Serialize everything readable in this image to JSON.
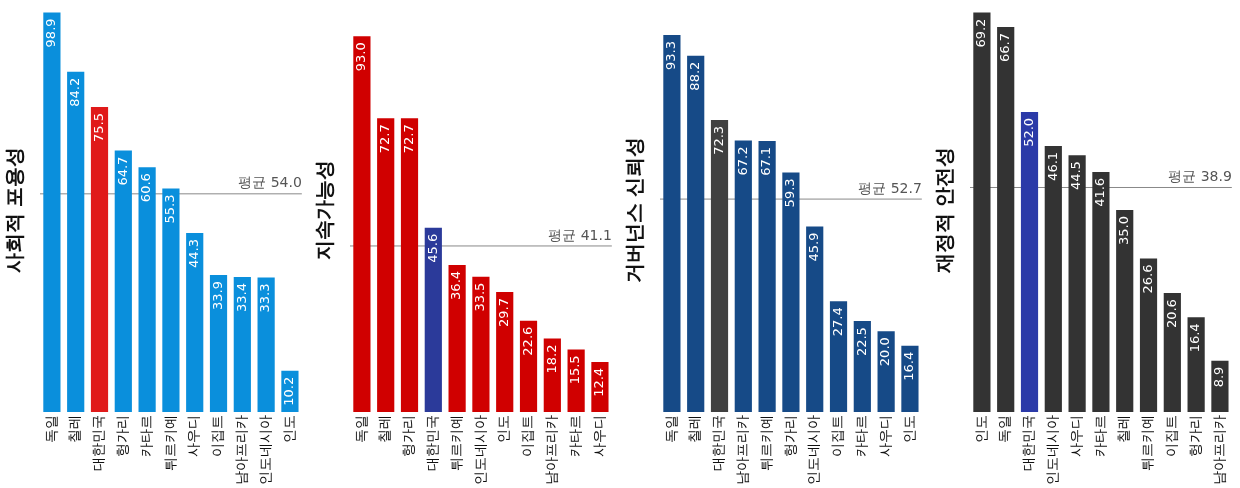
{
  "chart_data": [
    {
      "type": "bar",
      "ylabel": "사회적 포용성",
      "categories": [
        "독일",
        "칠레",
        "대한민국",
        "헝가리",
        "카타르",
        "튀르키예",
        "사우디",
        "이집트",
        "남아프리카",
        "인도네시아",
        "인도"
      ],
      "values": [
        98.9,
        84.2,
        75.5,
        64.7,
        60.6,
        55.3,
        44.3,
        33.9,
        33.4,
        33.3,
        10.2
      ],
      "value_labels": [
        "98.9",
        "84.2",
        "75.5",
        "64.7",
        "60.6",
        "55.3",
        "44.3",
        "33.9",
        "33.4",
        "33.3",
        "10.2"
      ],
      "colors": [
        "#0a8fdc",
        "#0a8fdc",
        "#e01a1a",
        "#0a8fdc",
        "#0a8fdc",
        "#0a8fdc",
        "#0a8fdc",
        "#0a8fdc",
        "#0a8fdc",
        "#0a8fdc",
        "#0a8fdc"
      ],
      "tick_labels": "x",
      "grid": false,
      "ref_lines": [
        {
          "axis": "y",
          "value": 54.0,
          "label": "평균 54.0",
          "color": "#888888"
        }
      ]
    },
    {
      "type": "bar",
      "ylabel": "지속가능성",
      "categories": [
        "독일",
        "칠레",
        "헝가리",
        "대한민국",
        "튀르키예",
        "인도네시아",
        "인도",
        "이집트",
        "남아프리카",
        "카타르",
        "사우디"
      ],
      "values": [
        93.0,
        72.7,
        72.7,
        45.6,
        36.4,
        33.5,
        29.7,
        22.6,
        18.2,
        15.5,
        12.4
      ],
      "value_labels": [
        "93.0",
        "72.7",
        "72.7",
        "45.6",
        "36.4",
        "33.5",
        "29.7",
        "22.6",
        "18.2",
        "15.5",
        "12.4"
      ],
      "colors": [
        "#d00000",
        "#d00000",
        "#d00000",
        "#2b3a9a",
        "#d00000",
        "#d00000",
        "#d00000",
        "#d00000",
        "#d00000",
        "#d00000",
        "#d00000"
      ],
      "tick_labels": "x",
      "grid": false,
      "ref_lines": [
        {
          "axis": "y",
          "value": 41.1,
          "label": "평균 41.1",
          "color": "#888888"
        }
      ]
    },
    {
      "type": "bar",
      "ylabel": "거버넌스 신뢰성",
      "categories": [
        "독일",
        "칠레",
        "대한민국",
        "남아프리카",
        "튀르키예",
        "헝가리",
        "인도네시아",
        "이집트",
        "카타르",
        "사우디",
        "인도"
      ],
      "values": [
        93.3,
        88.2,
        72.3,
        67.2,
        67.1,
        59.3,
        45.9,
        27.4,
        22.5,
        20.0,
        16.4
      ],
      "value_labels": [
        "93.3",
        "88.2",
        "72.3",
        "67.2",
        "67.1",
        "59.3",
        "45.9",
        "27.4",
        "22.5",
        "20.0",
        "16.4"
      ],
      "colors": [
        "#164a87",
        "#164a87",
        "#404040",
        "#164a87",
        "#164a87",
        "#164a87",
        "#164a87",
        "#164a87",
        "#164a87",
        "#164a87",
        "#164a87"
      ],
      "tick_labels": "x",
      "grid": false,
      "ref_lines": [
        {
          "axis": "y",
          "value": 52.7,
          "label": "평균 52.7",
          "color": "#888888"
        }
      ]
    },
    {
      "type": "bar",
      "ylabel": "재정적 안전성",
      "categories": [
        "인도",
        "독일",
        "대한민국",
        "인도네시아",
        "사우디",
        "카타르",
        "칠레",
        "튀르키예",
        "이집트",
        "헝가리",
        "남아프리카"
      ],
      "values": [
        69.2,
        66.7,
        52.0,
        46.1,
        44.5,
        41.6,
        35.0,
        26.6,
        20.6,
        16.4,
        8.9
      ],
      "value_labels": [
        "69.2",
        "66.7",
        "52.0",
        "46.1",
        "44.5",
        "41.6",
        "35.0",
        "26.6",
        "20.6",
        "16.4",
        "8.9"
      ],
      "colors": [
        "#333333",
        "#333333",
        "#2b3aa8",
        "#333333",
        "#333333",
        "#333333",
        "#333333",
        "#333333",
        "#333333",
        "#333333",
        "#333333"
      ],
      "tick_labels": "x",
      "grid": false,
      "ref_lines": [
        {
          "axis": "y",
          "value": 38.9,
          "label": "평균 38.9",
          "color": "#888888"
        }
      ]
    }
  ]
}
